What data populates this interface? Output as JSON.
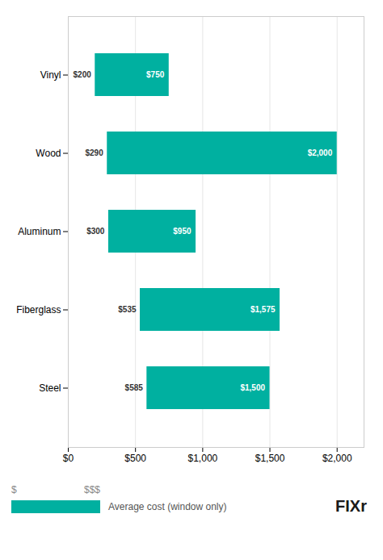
{
  "chart_data": {
    "type": "bar",
    "orientation": "horizontal",
    "categories": [
      "Vinyl",
      "Wood",
      "Aluminum",
      "Fiberglass",
      "Steel"
    ],
    "series": [
      {
        "name": "Average cost (window only)",
        "color": "#00b0a0",
        "values": [
          [
            200,
            750
          ],
          [
            290,
            2000
          ],
          [
            300,
            950
          ],
          [
            535,
            1575
          ],
          [
            585,
            1500
          ]
        ],
        "value_labels": [
          [
            "$200",
            "$750"
          ],
          [
            "$290",
            "$2,000"
          ],
          [
            "$300",
            "$950"
          ],
          [
            "$535",
            "$1,575"
          ],
          [
            "$585",
            "$1,500"
          ]
        ]
      }
    ],
    "xlim": [
      0,
      2200
    ],
    "xticks": [
      {
        "value": 0,
        "label": "$0"
      },
      {
        "value": 500,
        "label": "$500"
      },
      {
        "value": 1000,
        "label": "$1,000"
      },
      {
        "value": 1500,
        "label": "$1,500"
      },
      {
        "value": 2000,
        "label": "$2,000"
      }
    ],
    "grid": true,
    "data_labels": true,
    "legend": "bottom",
    "annotations": [
      "$",
      "$$$",
      "FIXr"
    ]
  }
}
